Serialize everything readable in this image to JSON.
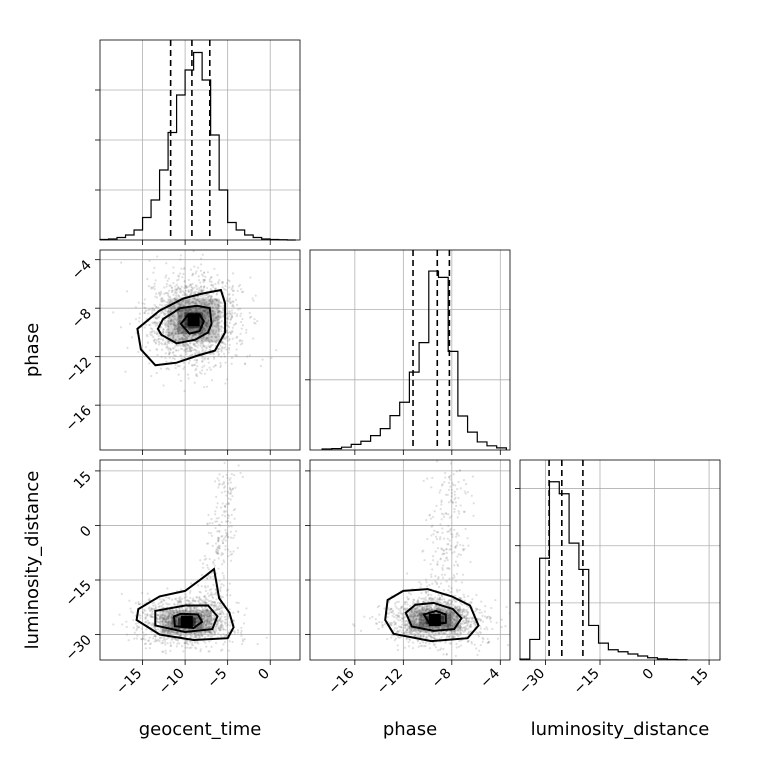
{
  "chart_data": {
    "type": "corner",
    "parameters": [
      "geocent_time",
      "phase",
      "luminosity_distance"
    ],
    "grid": true,
    "diagonals": [
      {
        "name": "geocent_time",
        "xlim": [
          -20,
          3.5
        ],
        "xticks": [
          -15,
          -10,
          -5,
          0
        ],
        "bin_width": 1,
        "bin_starts": [
          -20,
          -19,
          -18,
          -17,
          -16,
          -15,
          -14,
          -13,
          -12,
          -11,
          -10,
          -9,
          -8,
          -7,
          -6,
          -5,
          -4,
          -3,
          -2,
          -1,
          0,
          1,
          2
        ],
        "counts": [
          0.1,
          0.2,
          0.5,
          1,
          2,
          4.5,
          8,
          14,
          21.5,
          29,
          34,
          37.5,
          32,
          21,
          10,
          3.5,
          2,
          1,
          0.5,
          0.2,
          0.1,
          0.05,
          0
        ],
        "ylim": [
          0,
          40
        ],
        "quantiles": [
          -11.7,
          -9.2,
          -7.1
        ]
      },
      {
        "name": "phase",
        "xlim": [
          -19.7,
          -3.2
        ],
        "xticks": [
          -16,
          -12,
          -8,
          -4
        ],
        "bin_width": 0.8,
        "bin_starts": [
          -18.7,
          -17.9,
          -17.1,
          -16.3,
          -15.5,
          -14.7,
          -13.9,
          -13.1,
          -12.3,
          -11.5,
          -10.7,
          -9.9,
          -9.1,
          -8.3,
          -7.5,
          -6.7,
          -5.9,
          -5.1,
          -4.3
        ],
        "counts": [
          0.3,
          0.4,
          0.8,
          1.6,
          2.5,
          4.1,
          6.1,
          9.8,
          13.6,
          22.2,
          30.6,
          51.0,
          49.2,
          28.1,
          9.7,
          5.1,
          2.3,
          1.2,
          0.6
        ],
        "ylim": [
          0,
          57
        ],
        "quantiles": [
          -11.2,
          -9.2,
          -8.2
        ]
      },
      {
        "name": "luminosity_distance",
        "xlim": [
          -37,
          18
        ],
        "xticks": [
          -30,
          -15,
          0,
          15
        ],
        "bin_width": 2.7,
        "bin_starts": [
          -37,
          -34.3,
          -31.6,
          -28.9,
          -26.2,
          -23.5,
          -20.8,
          -18.1,
          -15.4,
          -12.7,
          -10,
          -7.3,
          -4.6,
          -1.9,
          0.8,
          3.5,
          6.2
        ],
        "counts": [
          0.3,
          7.2,
          35.6,
          62.4,
          58.2,
          40.9,
          31.7,
          12.1,
          5.9,
          3.6,
          2.9,
          2.1,
          1.4,
          0.8,
          0.4,
          0.2,
          0.1
        ],
        "ylim": [
          0,
          70
        ],
        "quantiles": [
          -29.0,
          -25.5,
          -19.7
        ]
      }
    ],
    "pairs": [
      {
        "x": "geocent_time",
        "y": "phase",
        "xlim": [
          -20,
          3.5
        ],
        "ylim": [
          -19.7,
          -3.2
        ],
        "yticks": [
          -16,
          -12,
          -8,
          -4
        ],
        "peak": [
          -9.0,
          -9.0
        ],
        "spread": [
          2.7,
          1.8
        ],
        "contours": [
          [
            [
              -13.5,
              -12.7
            ],
            [
              -11,
              -12.5
            ],
            [
              -8.5,
              -11.9
            ],
            [
              -6.5,
              -11.5
            ],
            [
              -5.3,
              -10
            ],
            [
              -5.3,
              -7.6
            ],
            [
              -5.8,
              -6.5
            ],
            [
              -8,
              -6.8
            ],
            [
              -10.2,
              -7.2
            ],
            [
              -13,
              -8.2
            ],
            [
              -15.6,
              -9.7
            ],
            [
              -15.2,
              -11.4
            ],
            [
              -13.5,
              -12.7
            ]
          ],
          [
            [
              -12.8,
              -10.2
            ],
            [
              -11,
              -10.9
            ],
            [
              -8.8,
              -10.6
            ],
            [
              -7.3,
              -10
            ],
            [
              -6.9,
              -9.3
            ],
            [
              -7.1,
              -8
            ],
            [
              -8.6,
              -7.8
            ],
            [
              -10.6,
              -8
            ],
            [
              -12.6,
              -8.9
            ],
            [
              -13.2,
              -9.7
            ],
            [
              -12.8,
              -10.2
            ]
          ],
          [
            [
              -10.5,
              -9.3
            ],
            [
              -9.5,
              -10.1
            ],
            [
              -8.3,
              -9.9
            ],
            [
              -7.8,
              -9.1
            ],
            [
              -8.3,
              -8.5
            ],
            [
              -9.6,
              -8.5
            ],
            [
              -10.5,
              -9.3
            ]
          ]
        ]
      },
      {
        "x": "geocent_time",
        "y": "luminosity_distance",
        "xlim": [
          -20,
          3.5
        ],
        "ylim": [
          -37,
          18
        ],
        "yticks": [
          -30,
          -15,
          0,
          15
        ],
        "peak": [
          -9.8,
          -26.5
        ],
        "spread": [
          2.6,
          3.2
        ],
        "contours": [
          [
            [
              -15.5,
              -23
            ],
            [
              -15.7,
              -26
            ],
            [
              -13,
              -30
            ],
            [
              -9,
              -31.5
            ],
            [
              -5,
              -31
            ],
            [
              -4.3,
              -28
            ],
            [
              -4.8,
              -24
            ],
            [
              -6,
              -20
            ],
            [
              -6.3,
              -16
            ],
            [
              -6.6,
              -12
            ],
            [
              -7.7,
              -14
            ],
            [
              -10,
              -18
            ],
            [
              -13,
              -19.5
            ],
            [
              -15.5,
              -23
            ]
          ],
          [
            [
              -13.5,
              -23.5
            ],
            [
              -13.5,
              -27.5
            ],
            [
              -10,
              -29.3
            ],
            [
              -6.8,
              -28.5
            ],
            [
              -6.2,
              -25
            ],
            [
              -7.3,
              -22
            ],
            [
              -10,
              -22
            ],
            [
              -13.5,
              -23.5
            ]
          ],
          [
            [
              -11.3,
              -25
            ],
            [
              -11.2,
              -27.7
            ],
            [
              -9,
              -28.2
            ],
            [
              -8,
              -26.5
            ],
            [
              -8.5,
              -24.5
            ],
            [
              -10.5,
              -24.3
            ],
            [
              -11.3,
              -25
            ]
          ]
        ]
      },
      {
        "x": "phase",
        "y": "luminosity_distance",
        "xlim": [
          -19.7,
          -3.2
        ],
        "ylim": [
          -37,
          18
        ],
        "peak": [
          -9.4,
          -26.0
        ],
        "spread": [
          1.9,
          3.2
        ],
        "contours": [
          [
            [
              -13.5,
              -26
            ],
            [
              -12.8,
              -29.8
            ],
            [
              -9.7,
              -31.8
            ],
            [
              -6.7,
              -31
            ],
            [
              -5.8,
              -27.5
            ],
            [
              -6.5,
              -22
            ],
            [
              -8,
              -19.5
            ],
            [
              -10,
              -17.5
            ],
            [
              -12,
              -18
            ],
            [
              -13.3,
              -20.5
            ],
            [
              -13.5,
              -26
            ]
          ],
          [
            [
              -11.8,
              -24
            ],
            [
              -11.3,
              -27.8
            ],
            [
              -9.5,
              -29
            ],
            [
              -7.8,
              -28.5
            ],
            [
              -7.2,
              -25.5
            ],
            [
              -7.9,
              -23
            ],
            [
              -9.5,
              -21.3
            ],
            [
              -11,
              -21.8
            ],
            [
              -11.8,
              -24
            ]
          ],
          [
            [
              -10.3,
              -24.5
            ],
            [
              -9.8,
              -27.2
            ],
            [
              -8.5,
              -26.8
            ],
            [
              -8.5,
              -24.5
            ],
            [
              -9.3,
              -23.5
            ],
            [
              -10.3,
              -24.5
            ]
          ]
        ]
      }
    ]
  }
}
